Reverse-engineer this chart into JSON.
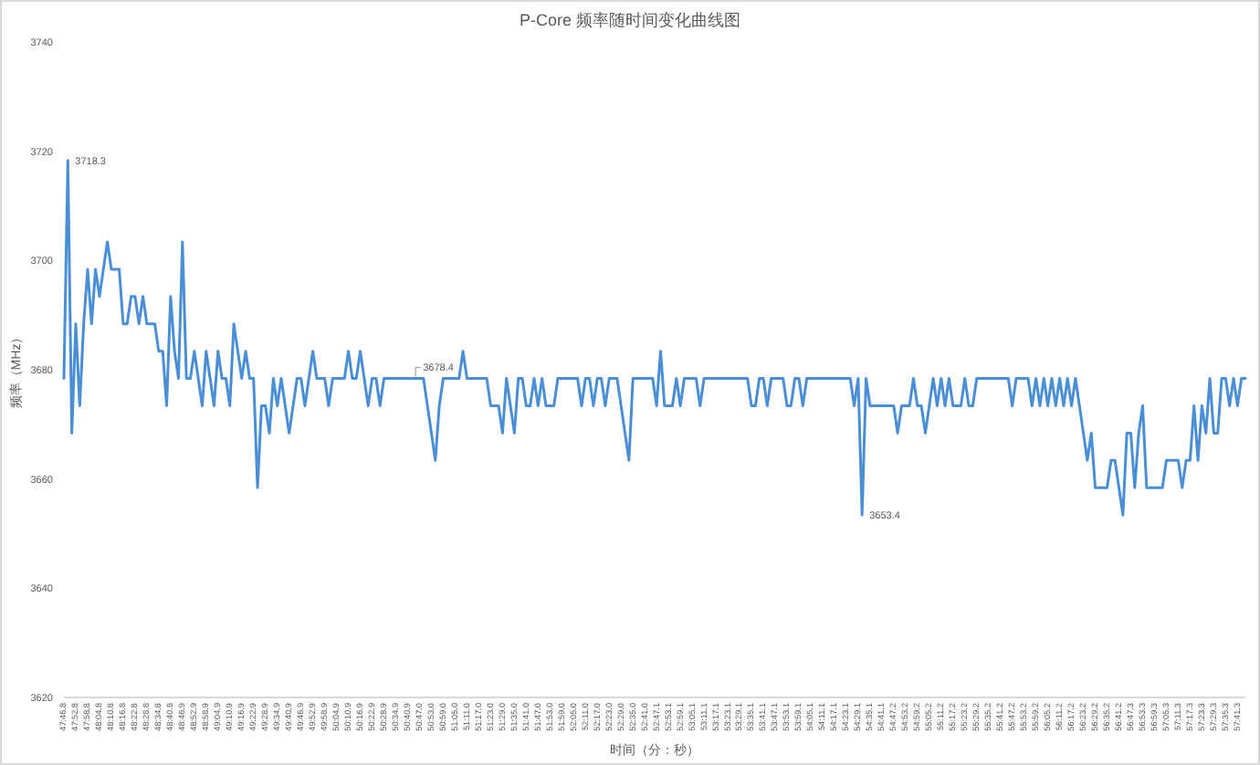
{
  "chart_data": {
    "type": "line",
    "title": "P-Core 频率随时间变化曲线图",
    "xlabel": "时间（分：秒）",
    "ylabel": "频率（MHz）",
    "ylim": [
      3620,
      3740
    ],
    "yticks": [
      3620,
      3640,
      3660,
      3680,
      3700,
      3720,
      3740
    ],
    "categories": [
      "47:46.8",
      null,
      null,
      "47:52.8",
      null,
      null,
      "47:58.8",
      null,
      null,
      "48:04.8",
      null,
      null,
      "48:10.8",
      null,
      null,
      "48:16.8",
      null,
      null,
      "48:22.8",
      null,
      null,
      "48:28.8",
      null,
      null,
      "48:34.8",
      null,
      null,
      "48:40.8",
      null,
      null,
      "48:46.9",
      null,
      null,
      "48:52.9",
      null,
      null,
      "48:58.9",
      null,
      null,
      "49:04.9",
      null,
      null,
      "49:10.9",
      null,
      null,
      "49:16.9",
      null,
      null,
      "49:22.9",
      null,
      null,
      "49:28.9",
      null,
      null,
      "49:34.9",
      null,
      null,
      "49:40.9",
      null,
      null,
      "49:46.9",
      null,
      null,
      "49:52.9",
      null,
      null,
      "49:58.9",
      null,
      null,
      "50:04.9",
      null,
      null,
      "50:10.9",
      null,
      null,
      "50:16.9",
      null,
      null,
      "50:22.9",
      null,
      null,
      "50:28.9",
      null,
      null,
      "50:34.9",
      null,
      null,
      "50:40.9",
      null,
      null,
      "50:47.0",
      null,
      null,
      "50:53.0",
      null,
      null,
      "50:59.0",
      null,
      null,
      "51:05.0",
      null,
      null,
      "51:11.0",
      null,
      null,
      "51:17.0",
      null,
      null,
      "51:23.0",
      null,
      null,
      "51:29.0",
      null,
      null,
      "51:35.0",
      null,
      null,
      "51:41.0",
      null,
      null,
      "51:47.0",
      null,
      null,
      "51:53.0",
      null,
      null,
      "51:59.0",
      null,
      null,
      "52:05.0",
      null,
      null,
      "52:11.0",
      null,
      null,
      "52:17.0",
      null,
      null,
      "52:23.0",
      null,
      null,
      "52:29.0",
      null,
      null,
      "52:35.0",
      null,
      null,
      "52:41.0",
      null,
      null,
      "52:47.1",
      null,
      null,
      "52:53.1",
      null,
      null,
      "52:59.1",
      null,
      null,
      "53:05.1",
      null,
      null,
      "53:11.1",
      null,
      null,
      "53:17.1",
      null,
      null,
      "53:23.1",
      null,
      null,
      "53:29.1",
      null,
      null,
      "53:35.1",
      null,
      null,
      "53:41.1",
      null,
      null,
      "53:47.1",
      null,
      null,
      "53:53.1",
      null,
      null,
      "53:59.1",
      null,
      null,
      "54:05.1",
      null,
      null,
      "54:11.1",
      null,
      null,
      "54:17.1",
      null,
      null,
      "54:23.1",
      null,
      null,
      "54:29.1",
      null,
      null,
      "54:35.1",
      null,
      null,
      "54:41.1",
      null,
      null,
      "54:47.2",
      null,
      null,
      "54:53.2",
      null,
      null,
      "54:59.2",
      null,
      null,
      "55:05.2",
      null,
      null,
      "55:11.2",
      null,
      null,
      "55:17.2",
      null,
      null,
      "55:23.2",
      null,
      null,
      "55:29.2",
      null,
      null,
      "55:35.2",
      null,
      null,
      "55:41.2",
      null,
      null,
      "55:47.2",
      null,
      null,
      "55:53.2",
      null,
      null,
      "55:59.2",
      null,
      null,
      "56:05.2",
      null,
      null,
      "56:11.2",
      null,
      null,
      "56:17.2",
      null,
      null,
      "56:23.2",
      null,
      null,
      "56:29.2",
      null,
      null,
      "56:35.2",
      null,
      null,
      "56:41.2",
      null,
      null,
      "56:47.3",
      null,
      null,
      "56:53.3",
      null,
      null,
      "56:59.3",
      null,
      null,
      "57:05.3",
      null,
      null,
      "57:11.3",
      null,
      null,
      "57:17.3",
      null,
      null,
      "57:23.3",
      null,
      null,
      "57:29.3",
      null,
      null,
      "57:35.3",
      null,
      null,
      "57:41.3",
      null,
      null
    ],
    "series": [
      {
        "color": "#4a8fd6",
        "values": [
          3678.4,
          3718.3,
          3668.4,
          3688.4,
          3673.4,
          3688.4,
          3698.4,
          3688.4,
          3698.4,
          3693.4,
          3698.4,
          3703.4,
          3698.4,
          3698.4,
          3698.4,
          3688.4,
          3688.4,
          3693.4,
          3693.4,
          3688.4,
          3693.4,
          3688.4,
          3688.4,
          3688.4,
          3683.4,
          3683.4,
          3673.4,
          3693.4,
          3683.4,
          3678.4,
          3703.4,
          3678.4,
          3678.4,
          3683.4,
          3678.4,
          3673.4,
          3683.4,
          3678.4,
          3673.4,
          3683.4,
          3678.4,
          3678.4,
          3673.4,
          3688.4,
          3683.4,
          3678.4,
          3683.4,
          3678.4,
          3678.4,
          3658.4,
          3673.4,
          3673.4,
          3668.4,
          3678.4,
          3673.4,
          3678.4,
          3673.4,
          3668.4,
          3673.4,
          3678.4,
          3678.4,
          3673.4,
          3678.4,
          3683.4,
          3678.4,
          3678.4,
          3678.4,
          3673.4,
          3678.4,
          3678.4,
          3678.4,
          3678.4,
          3683.4,
          3678.4,
          3678.4,
          3683.4,
          3678.4,
          3673.4,
          3678.4,
          3678.4,
          3673.4,
          3678.4,
          3678.4,
          3678.4,
          3678.4,
          3678.4,
          3678.4,
          3678.4,
          3678.4,
          3678.4,
          3678.4,
          3678.4,
          3673.4,
          3668.4,
          3663.4,
          3673.4,
          3678.4,
          3678.4,
          3678.4,
          3678.4,
          3678.4,
          3683.4,
          3678.4,
          3678.4,
          3678.4,
          3678.4,
          3678.4,
          3678.4,
          3673.4,
          3673.4,
          3673.4,
          3668.4,
          3678.4,
          3673.4,
          3668.4,
          3678.4,
          3678.4,
          3673.4,
          3673.4,
          3678.4,
          3673.4,
          3678.4,
          3673.4,
          3673.4,
          3673.4,
          3678.4,
          3678.4,
          3678.4,
          3678.4,
          3678.4,
          3678.4,
          3673.4,
          3678.4,
          3678.4,
          3673.4,
          3678.4,
          3678.4,
          3673.4,
          3678.4,
          3678.4,
          3678.4,
          3673.4,
          3668.4,
          3663.4,
          3678.4,
          3678.4,
          3678.4,
          3678.4,
          3678.4,
          3678.4,
          3673.4,
          3683.4,
          3673.4,
          3673.4,
          3673.4,
          3678.4,
          3673.4,
          3678.4,
          3678.4,
          3678.4,
          3678.4,
          3673.4,
          3678.4,
          3678.4,
          3678.4,
          3678.4,
          3678.4,
          3678.4,
          3678.4,
          3678.4,
          3678.4,
          3678.4,
          3678.4,
          3678.4,
          3673.4,
          3673.4,
          3678.4,
          3678.4,
          3673.4,
          3678.4,
          3678.4,
          3678.4,
          3678.4,
          3673.4,
          3673.4,
          3678.4,
          3678.4,
          3673.4,
          3678.4,
          3678.4,
          3678.4,
          3678.4,
          3678.4,
          3678.4,
          3678.4,
          3678.4,
          3678.4,
          3678.4,
          3678.4,
          3678.4,
          3673.4,
          3678.4,
          3653.4,
          3678.4,
          3673.4,
          3673.4,
          3673.4,
          3673.4,
          3673.4,
          3673.4,
          3673.4,
          3668.4,
          3673.4,
          3673.4,
          3673.4,
          3678.4,
          3673.4,
          3673.4,
          3668.4,
          3673.4,
          3678.4,
          3673.4,
          3678.4,
          3673.4,
          3678.4,
          3673.4,
          3673.4,
          3673.4,
          3678.4,
          3673.4,
          3673.4,
          3678.4,
          3678.4,
          3678.4,
          3678.4,
          3678.4,
          3678.4,
          3678.4,
          3678.4,
          3678.4,
          3673.4,
          3678.4,
          3678.4,
          3678.4,
          3678.4,
          3673.4,
          3678.4,
          3673.4,
          3678.4,
          3673.4,
          3678.4,
          3673.4,
          3678.4,
          3673.4,
          3678.4,
          3673.4,
          3678.4,
          3673.4,
          3668.4,
          3663.4,
          3668.4,
          3658.4,
          3658.4,
          3658.4,
          3658.4,
          3663.4,
          3663.4,
          3658.4,
          3653.4,
          3668.4,
          3668.4,
          3658.4,
          3668.4,
          3673.4,
          3658.4,
          3658.4,
          3658.4,
          3658.4,
          3658.4,
          3663.4,
          3663.4,
          3663.4,
          3663.4,
          3658.4,
          3663.4,
          3663.4,
          3673.4,
          3663.4,
          3673.4,
          3668.4,
          3678.4,
          3668.4,
          3668.4,
          3678.4,
          3678.4,
          3673.4,
          3678.4,
          3673.4,
          3678.4,
          3678.4
        ],
        "value_labels": [
          null,
          "3718.3",
          null,
          null,
          null,
          null,
          null,
          null,
          null,
          null,
          null,
          null,
          null,
          null,
          null,
          null,
          null,
          null,
          null,
          null,
          null,
          null,
          null,
          null,
          null,
          null,
          null,
          null,
          null,
          null,
          null,
          null,
          null,
          null,
          null,
          null,
          null,
          null,
          null,
          null,
          null,
          null,
          null,
          null,
          null,
          null,
          null,
          null,
          null,
          null,
          null,
          null,
          null,
          null,
          null,
          null,
          null,
          null,
          null,
          null,
          null,
          null,
          null,
          null,
          null,
          null,
          null,
          null,
          null,
          null,
          null,
          null,
          null,
          null,
          null,
          null,
          null,
          null,
          null,
          null,
          null,
          null,
          null,
          null,
          null,
          null,
          null,
          null,
          null,
          "3678.4",
          null,
          null,
          null,
          null,
          null,
          null,
          null,
          null,
          null,
          null,
          null,
          null,
          null,
          null,
          null,
          null,
          null,
          null,
          null,
          null,
          null,
          null,
          null,
          null,
          null,
          null,
          null,
          null,
          null,
          null,
          null,
          null,
          null,
          null,
          null,
          null,
          null,
          null,
          null,
          null,
          null,
          null,
          null,
          null,
          null,
          null,
          null,
          null,
          null,
          null,
          null,
          null,
          null,
          null,
          null,
          null,
          null,
          null,
          null,
          null,
          null,
          null,
          null,
          null,
          null,
          null,
          null,
          null,
          null,
          null,
          null,
          null,
          null,
          null,
          null,
          null,
          null,
          null,
          null,
          null,
          null,
          null,
          null,
          null,
          null,
          null,
          null,
          null,
          null,
          null,
          null,
          null,
          null,
          null,
          null,
          null,
          null,
          null,
          null,
          null,
          null,
          null,
          null,
          null,
          null,
          null,
          null,
          null,
          null,
          null,
          null,
          null,
          "3653.4",
          null,
          null,
          null,
          null,
          null,
          null,
          null,
          null,
          null,
          null,
          null,
          null,
          null,
          null,
          null,
          null,
          null,
          null,
          null,
          null,
          null,
          null,
          null,
          null,
          null,
          null,
          null,
          null,
          null,
          null,
          null,
          null,
          null,
          null,
          null,
          null,
          null,
          null,
          null,
          null,
          null,
          null,
          null,
          null,
          null,
          null,
          null,
          null,
          null,
          null,
          null,
          null,
          null,
          null,
          null,
          null,
          null,
          null,
          null,
          null,
          null,
          null,
          null,
          null,
          null,
          null,
          null,
          null,
          null,
          null,
          null,
          null,
          null,
          null,
          null,
          null,
          null,
          null,
          null,
          null,
          null,
          null,
          null,
          null,
          null,
          null,
          null,
          null,
          null,
          null,
          null,
          null,
          null,
          null,
          null,
          null,
          null
        ]
      }
    ],
    "grid": false,
    "marker": "none",
    "line_style": "solid"
  }
}
